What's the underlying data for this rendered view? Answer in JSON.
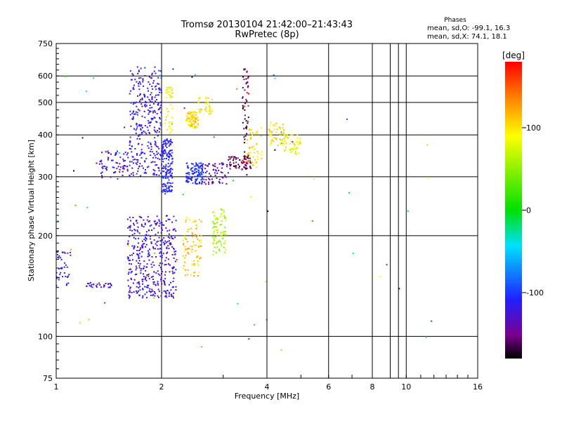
{
  "title_line1": "Tromsø 20130104 21:42:00–21:43:43",
  "title_line2": "RwPretec (8p)",
  "stats": {
    "header": "Phases",
    "line_o": "mean, sd,O: -99.1, 16.3",
    "line_x": "mean, sd,X:  74.1, 18.1"
  },
  "colorbar": {
    "label": "[deg]",
    "range": [
      -180,
      180
    ],
    "ticks": [
      100,
      0,
      -100
    ]
  },
  "chart_data": {
    "type": "scatter",
    "xlabel": "Frequency [MHz]",
    "ylabel": "Stationary phase Virtual Height [km]",
    "xscale": "log",
    "yscale": "log",
    "xlim": [
      1,
      16
    ],
    "ylim": [
      75,
      750
    ],
    "xticks": [
      1,
      2,
      4,
      6,
      8,
      10,
      16
    ],
    "xtick_labels": [
      "1",
      "2",
      "4",
      "6",
      "8",
      "10",
      "16"
    ],
    "yticks": [
      75,
      100,
      200,
      300,
      400,
      500,
      600,
      750
    ],
    "ytick_labels": [
      "75",
      "100",
      "200",
      "300",
      "400",
      "500",
      "600",
      "750"
    ],
    "grid": true,
    "color_by": "phase [deg]",
    "clusters": [
      {
        "f": [
          1.62,
          2.0
        ],
        "h": [
          300,
          640
        ],
        "phase": -120,
        "n": 320
      },
      {
        "f": [
          1.33,
          1.62
        ],
        "h": [
          295,
          360
        ],
        "phase": -125,
        "n": 70
      },
      {
        "f": [
          2.0,
          2.15
        ],
        "h": [
          270,
          390
        ],
        "phase": -110,
        "n": 180
      },
      {
        "f": [
          2.35,
          2.65
        ],
        "h": [
          285,
          330
        ],
        "phase": -105,
        "n": 120
      },
      {
        "f": [
          2.65,
          3.1
        ],
        "h": [
          285,
          330
        ],
        "phase": -140,
        "n": 60
      },
      {
        "f": [
          3.1,
          3.6
        ],
        "h": [
          315,
          345
        ],
        "phase": -165,
        "n": 70
      },
      {
        "f": [
          3.4,
          3.55
        ],
        "h": [
          300,
          640
        ],
        "phase": -165,
        "n": 60
      },
      {
        "f": [
          2.05,
          2.15
        ],
        "h": [
          400,
          560
        ],
        "phase": 90,
        "n": 40
      },
      {
        "f": [
          2.35,
          2.55
        ],
        "h": [
          420,
          470
        ],
        "phase": 105,
        "n": 80
      },
      {
        "f": [
          2.55,
          2.8
        ],
        "h": [
          460,
          520
        ],
        "phase": 95,
        "n": 35
      },
      {
        "f": [
          3.5,
          3.9
        ],
        "h": [
          320,
          420
        ],
        "phase": 100,
        "n": 50
      },
      {
        "f": [
          4.05,
          4.5
        ],
        "h": [
          370,
          440
        ],
        "phase": 100,
        "n": 50
      },
      {
        "f": [
          4.45,
          5.0
        ],
        "h": [
          350,
          400
        ],
        "phase": 85,
        "n": 50
      },
      {
        "f": [
          1.6,
          2.2
        ],
        "h": [
          130,
          230
        ],
        "phase": -125,
        "n": 400
      },
      {
        "f": [
          1.0,
          1.1
        ],
        "h": [
          140,
          180
        ],
        "phase": -120,
        "n": 40
      },
      {
        "f": [
          1.22,
          1.45
        ],
        "h": [
          140,
          145
        ],
        "phase": -130,
        "n": 30
      },
      {
        "f": [
          2.3,
          2.6
        ],
        "h": [
          150,
          230
        ],
        "phase": 110,
        "n": 90
      },
      {
        "f": [
          2.8,
          3.05
        ],
        "h": [
          175,
          240
        ],
        "phase": 60,
        "n": 80
      },
      {
        "f": [
          1.0,
          12.0
        ],
        "h": [
          90,
          650
        ],
        "phase": 0,
        "n": 60
      }
    ]
  }
}
